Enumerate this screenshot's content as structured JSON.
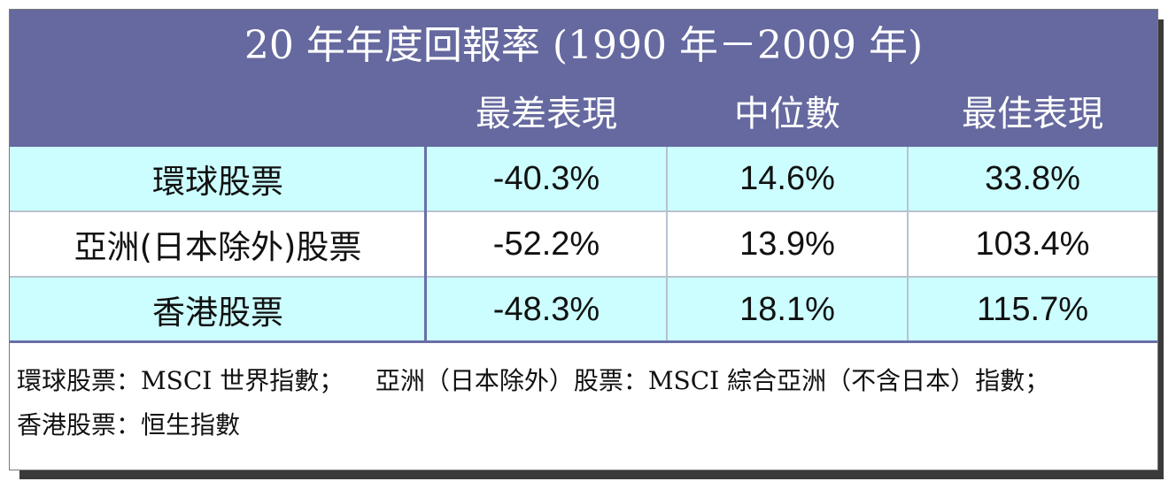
{
  "title": "20 年年度回報率  (1990 年－2009 年)",
  "columns": [
    "最差表現",
    "中位數",
    "最佳表現"
  ],
  "rows": [
    {
      "label": "環球股票",
      "values": [
        "-40.3%",
        "14.6%",
        "33.8%"
      ]
    },
    {
      "label": "亞洲(日本除外)股票",
      "values": [
        "-52.2%",
        "13.9%",
        "103.4%"
      ]
    },
    {
      "label": "香港股票",
      "values": [
        "-48.3%",
        "18.1%",
        "115.7%"
      ]
    }
  ],
  "notes": [
    "環球股票：MSCI 世界指數；    亞洲（日本除外）股票：MSCI 綜合亞洲（不含日本）指數；",
    "香港股票：恒生指數"
  ],
  "colors": {
    "header_bg": "#65699f",
    "header_text": "#ffffff",
    "row_cyan": "#ccfeff",
    "row_white": "#ffffff",
    "shadow": "#3a3a3a"
  }
}
